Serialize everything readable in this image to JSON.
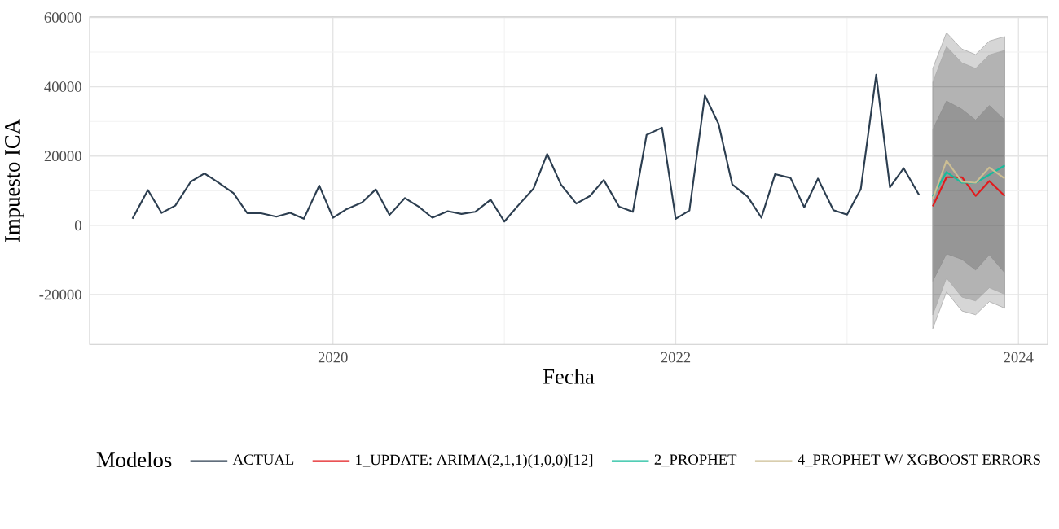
{
  "chart_data": {
    "type": "line",
    "xlabel": "Fecha",
    "ylabel": "Impuesto ICA",
    "legend_title": "Modelos",
    "x": [
      "2018-11",
      "2018-12",
      "2019-01",
      "2019-02",
      "2019-03",
      "2019-04",
      "2019-05",
      "2019-06",
      "2019-07",
      "2019-08",
      "2019-09",
      "2019-10",
      "2019-11",
      "2019-12",
      "2020-01",
      "2020-02",
      "2020-03",
      "2020-04",
      "2020-05",
      "2020-06",
      "2020-07",
      "2020-08",
      "2020-09",
      "2020-10",
      "2020-11",
      "2020-12",
      "2021-01",
      "2021-02",
      "2021-03",
      "2021-04",
      "2021-05",
      "2021-06",
      "2021-07",
      "2021-08",
      "2021-09",
      "2021-10",
      "2021-11",
      "2021-12",
      "2022-01",
      "2022-02",
      "2022-03",
      "2022-04",
      "2022-05",
      "2022-06",
      "2022-07",
      "2022-08",
      "2022-09",
      "2022-10",
      "2022-11",
      "2022-12",
      "2023-01",
      "2023-02",
      "2023-03",
      "2023-04",
      "2023-05",
      "2023-06"
    ],
    "series": [
      {
        "name": "ACTUAL",
        "color": "#2c3e50",
        "values": [
          1900,
          10200,
          3600,
          5700,
          12600,
          15000,
          12400,
          9300,
          3500,
          3500,
          2500,
          3600,
          1900,
          11500,
          2200,
          4700,
          6600,
          10400,
          3000,
          7900,
          5400,
          2200,
          4100,
          3300,
          3900,
          7400,
          1100,
          5700,
          10600,
          20600,
          11800,
          6300,
          8500,
          13100,
          5400,
          3900,
          26100,
          28200,
          1900,
          4300,
          37500,
          29300,
          11800,
          8300,
          2200,
          14800,
          13700,
          5200,
          13500,
          4400,
          3100,
          10500,
          43500,
          11000,
          16500,
          8800
        ]
      },
      {
        "name": "1_UPDATE: ARIMA(2,1,1)(1,0,0)[12]",
        "color": "#e31a1c",
        "x": [
          "2023-07",
          "2023-08",
          "2023-09",
          "2023-10",
          "2023-11",
          "2023-12"
        ],
        "values": [
          5500,
          13900,
          13900,
          8500,
          12800,
          8500
        ],
        "lower": [
          -29800,
          -19200,
          -24700,
          -25800,
          -22000,
          -23900
        ],
        "upper": [
          45300,
          55600,
          50900,
          49300,
          53200,
          54500
        ]
      },
      {
        "name": "2_PROPHET",
        "color": "#18bc9c",
        "x": [
          "2023-07",
          "2023-08",
          "2023-09",
          "2023-10",
          "2023-11",
          "2023-12"
        ],
        "values": [
          8300,
          15400,
          12300,
          12300,
          14600,
          17300
        ],
        "lower": [
          -16100,
          -8200,
          -9800,
          -12900,
          -8500,
          -13700
        ],
        "upper": [
          27700,
          35900,
          33500,
          30400,
          34600,
          30400
        ]
      },
      {
        "name": "4_PROPHET W/ XGBOOST ERRORS",
        "color": "#ccbe93",
        "x": [
          "2023-07",
          "2023-08",
          "2023-09",
          "2023-10",
          "2023-11",
          "2023-12"
        ],
        "values": [
          7600,
          18700,
          12600,
          12300,
          16700,
          13500
        ],
        "lower": [
          -25800,
          -15200,
          -20700,
          -21800,
          -18000,
          -19900
        ],
        "upper": [
          41300,
          51600,
          46900,
          45300,
          49200,
          50500
        ]
      }
    ],
    "xlim": [
      "2018-08",
      "2024-03"
    ],
    "xticks": [
      "2020",
      "2022",
      "2024"
    ],
    "ylim": [
      -34400,
      60200
    ],
    "yticks": [
      -20000,
      0,
      20000,
      40000,
      60000
    ],
    "grid": true,
    "legend": "bottom",
    "line_style": "solid",
    "marker": "none"
  }
}
